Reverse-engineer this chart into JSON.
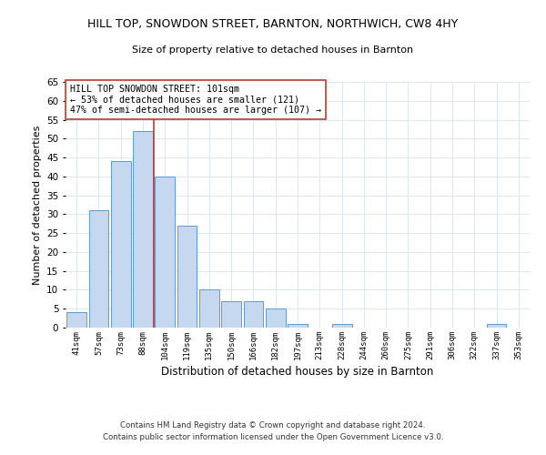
{
  "title_line1": "HILL TOP, SNOWDON STREET, BARNTON, NORTHWICH, CW8 4HY",
  "title_line2": "Size of property relative to detached houses in Barnton",
  "xlabel": "Distribution of detached houses by size in Barnton",
  "ylabel": "Number of detached properties",
  "bar_labels": [
    "41sqm",
    "57sqm",
    "73sqm",
    "88sqm",
    "104sqm",
    "119sqm",
    "135sqm",
    "150sqm",
    "166sqm",
    "182sqm",
    "197sqm",
    "213sqm",
    "228sqm",
    "244sqm",
    "260sqm",
    "275sqm",
    "291sqm",
    "306sqm",
    "322sqm",
    "337sqm",
    "353sqm"
  ],
  "bar_values": [
    4,
    31,
    44,
    52,
    40,
    27,
    10,
    7,
    7,
    5,
    1,
    0,
    1,
    0,
    0,
    0,
    0,
    0,
    0,
    1,
    0
  ],
  "bar_color": "#c5d8f0",
  "bar_edge_color": "#5b9bd5",
  "ylim": [
    0,
    65
  ],
  "yticks": [
    0,
    5,
    10,
    15,
    20,
    25,
    30,
    35,
    40,
    45,
    50,
    55,
    60,
    65
  ],
  "vline_color": "#c0392b",
  "annotation_text": "HILL TOP SNOWDON STREET: 101sqm\n← 53% of detached houses are smaller (121)\n47% of semi-detached houses are larger (107) →",
  "annotation_box_color": "#ffffff",
  "annotation_box_edge": "#c0392b",
  "footer_line1": "Contains HM Land Registry data © Crown copyright and database right 2024.",
  "footer_line2": "Contains public sector information licensed under the Open Government Licence v3.0.",
  "background_color": "#ffffff",
  "grid_color": "#dce6f1"
}
